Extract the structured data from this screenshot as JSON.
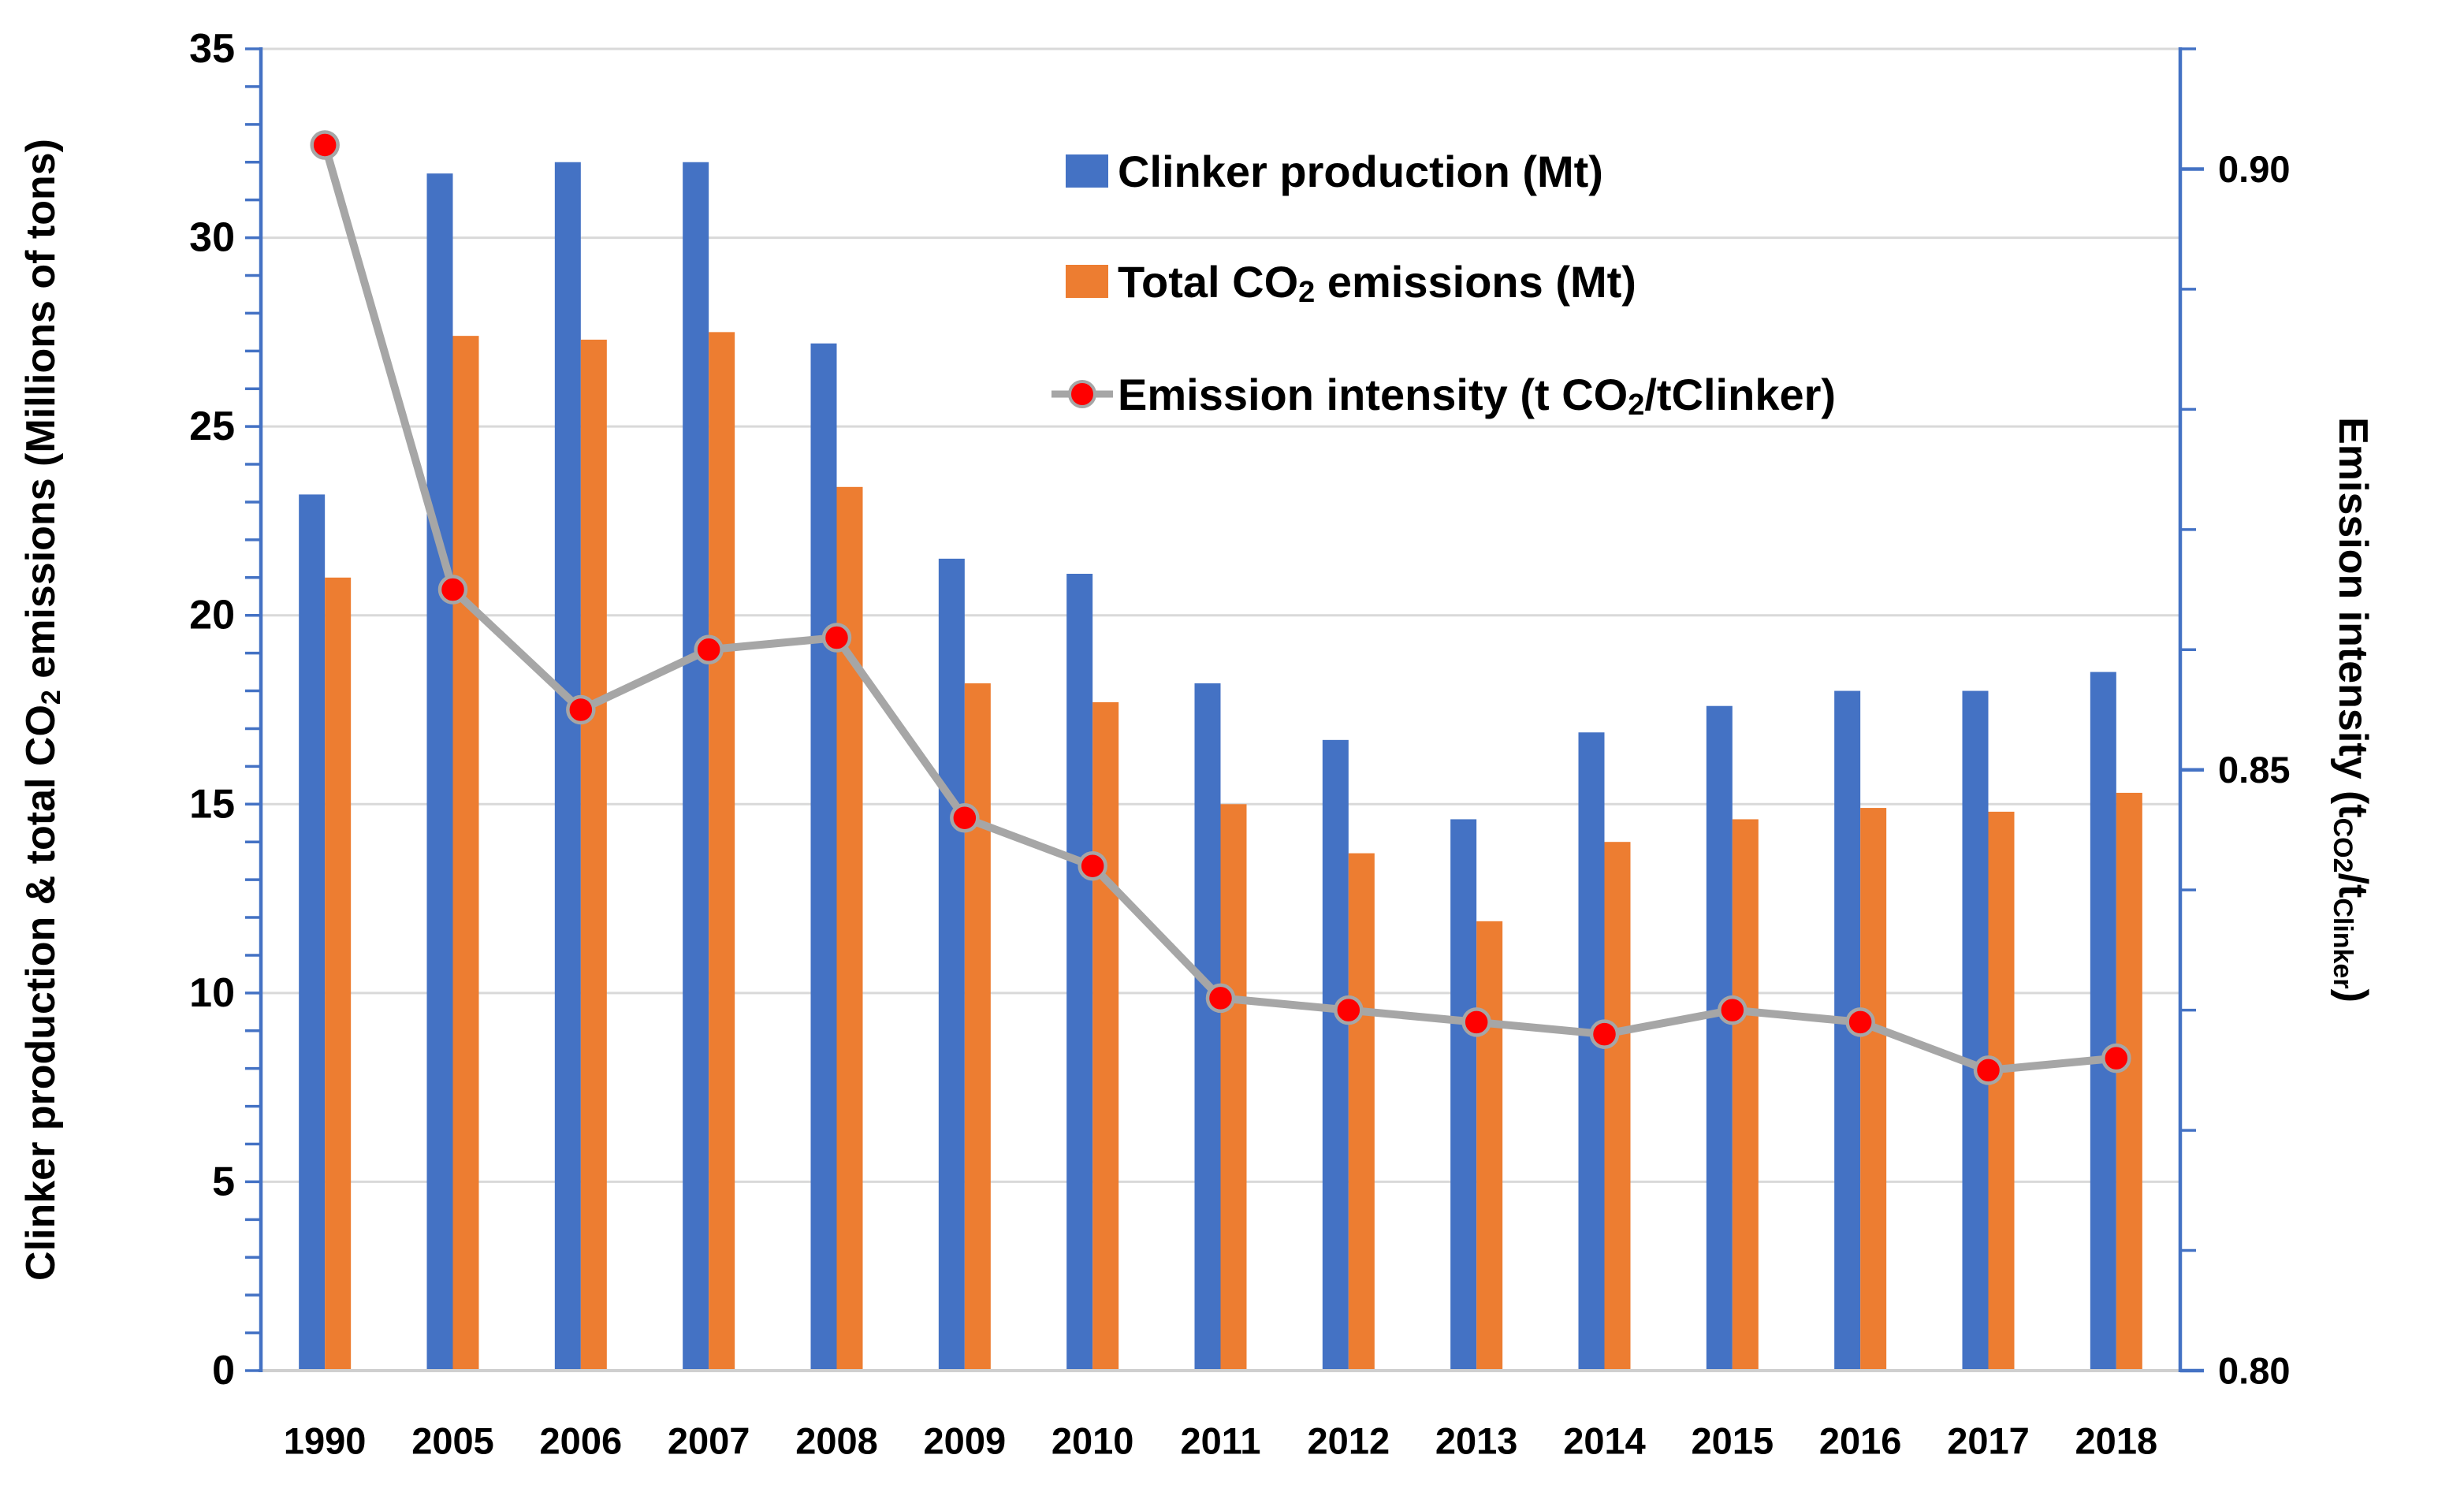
{
  "chart_data": {
    "type": "combo",
    "subtype": "grouped-bars-with-line-on-secondary-axis",
    "categories": [
      "1990",
      "2005",
      "2006",
      "2007",
      "2008",
      "2009",
      "2010",
      "2011",
      "2012",
      "2013",
      "2014",
      "2015",
      "2016",
      "2017",
      "2018"
    ],
    "series": [
      {
        "name": "Clinker production (Mt)",
        "type": "bar",
        "axis": "left",
        "color": "#4472C4",
        "values": [
          23.2,
          31.7,
          32.0,
          32.0,
          27.2,
          21.5,
          21.1,
          18.2,
          16.7,
          14.6,
          16.9,
          17.6,
          18.0,
          18.0,
          18.5
        ]
      },
      {
        "name": "Total CO2 emissions (Mt)",
        "type": "bar",
        "axis": "left",
        "color": "#ED7D31",
        "values": [
          21.0,
          27.4,
          27.3,
          27.5,
          23.4,
          18.2,
          17.7,
          15.0,
          13.7,
          11.9,
          14.0,
          14.6,
          14.9,
          14.8,
          15.3
        ]
      },
      {
        "name": "Emission intensity (t CO2/tClinker)",
        "type": "line",
        "axis": "right",
        "color": "#A6A6A6",
        "marker": "circle",
        "marker_color": "#FF0000",
        "marker_outline": "#A6A6A6",
        "values": [
          0.902,
          0.865,
          0.855,
          0.86,
          0.861,
          0.846,
          0.842,
          0.831,
          0.83,
          0.829,
          0.828,
          0.83,
          0.829,
          0.825,
          0.826
        ]
      }
    ],
    "left_axis": {
      "title": "Clinker production & total CO2 emissions (Millions of tons)",
      "title_segments": [
        {
          "t": "Clinker production & total CO"
        },
        {
          "t": "2",
          "sub": true
        },
        {
          "t": " emissions (Millions of tons)"
        }
      ],
      "min": 0,
      "max": 35,
      "major_step": 5,
      "minor_step": 1,
      "tick_labels": [
        "0",
        "5",
        "10",
        "15",
        "20",
        "25",
        "30",
        "35"
      ]
    },
    "right_axis": {
      "title": "Emission intensity (t_CO2/t_Clinker)",
      "title_segments": [
        {
          "t": "Emission intensity (t"
        },
        {
          "t": "CO2",
          "sub": true
        },
        {
          "t": "/t"
        },
        {
          "t": "Clinker",
          "sub": true
        },
        {
          "t": ")"
        }
      ],
      "min": 0.8,
      "max": 0.91,
      "minor_step": 0.01,
      "major_ticks": [
        0.8,
        0.85,
        0.9
      ],
      "tick_labels": [
        "0.80",
        "0.85",
        "0.90"
      ]
    },
    "x_axis": {
      "tick_labels": [
        "1990",
        "2005",
        "2006",
        "2007",
        "2008",
        "2009",
        "2010",
        "2011",
        "2012",
        "2013",
        "2014",
        "2015",
        "2016",
        "2017",
        "2018"
      ]
    },
    "legend": {
      "position": "top-center-inside",
      "items": [
        {
          "marker": "square",
          "color": "#4472C4",
          "label": "Clinker production (Mt)",
          "segments": [
            {
              "t": "Clinker production (Mt)"
            }
          ]
        },
        {
          "marker": "square",
          "color": "#ED7D31",
          "label": "Total CO2 emissions (Mt)",
          "segments": [
            {
              "t": "Total CO"
            },
            {
              "t": "2",
              "sub": true
            },
            {
              "t": " emissions (Mt)"
            }
          ]
        },
        {
          "marker": "line-dot",
          "color": "#A6A6A6",
          "dot_color": "#FF0000",
          "label": "Emission intensity (t CO2/tClinker)",
          "segments": [
            {
              "t": "Emission intensity (t CO"
            },
            {
              "t": "2",
              "sub": true
            },
            {
              "t": "/tClinker)"
            }
          ]
        }
      ]
    },
    "grid": {
      "horizontal": true,
      "color": "#D9D9D9"
    },
    "colors": {
      "axis_line": "#4472C4",
      "x_axis_line": "#CFCFCF",
      "gridline": "#D9D9D9",
      "text": "#000000",
      "background": "#FFFFFF"
    }
  }
}
